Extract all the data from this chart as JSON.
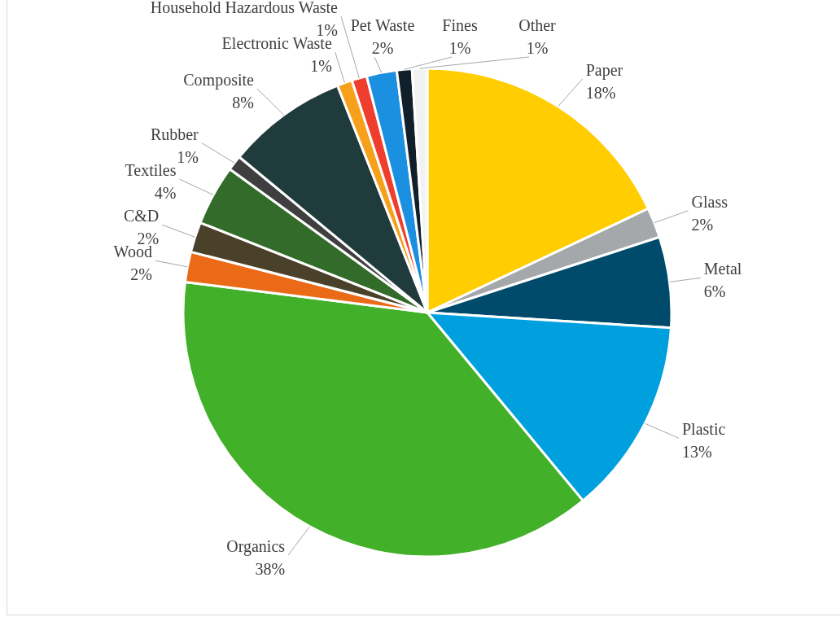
{
  "chart_data": {
    "type": "pie",
    "categories": [
      "Paper",
      "Glass",
      "Metal",
      "Plastic",
      "Organics",
      "Wood",
      "C&D",
      "Textiles",
      "Rubber",
      "Composite",
      "Electronic Waste",
      "Household Hazardous Waste",
      "Pet Waste",
      "Fines",
      "Other"
    ],
    "values": [
      18,
      2,
      6,
      13,
      38,
      2,
      2,
      4,
      1,
      8,
      1,
      1,
      2,
      1,
      1
    ],
    "value_labels": [
      "18%",
      "2%",
      "6%",
      "13%",
      "38%",
      "2%",
      "2%",
      "4%",
      "1%",
      "8%",
      "1%",
      "1%",
      "2%",
      "1%",
      "1%"
    ],
    "colors": [
      "#ffcd00",
      "#a5a8aa",
      "#004b6b",
      "#00a0df",
      "#43b02a",
      "#ea6a17",
      "#4a412a",
      "#336b2a",
      "#3f3f3f",
      "#203b3c",
      "#f7a01c",
      "#ef3e2d",
      "#1b8fe0",
      "#101f2a",
      "#f2f2f2"
    ]
  }
}
